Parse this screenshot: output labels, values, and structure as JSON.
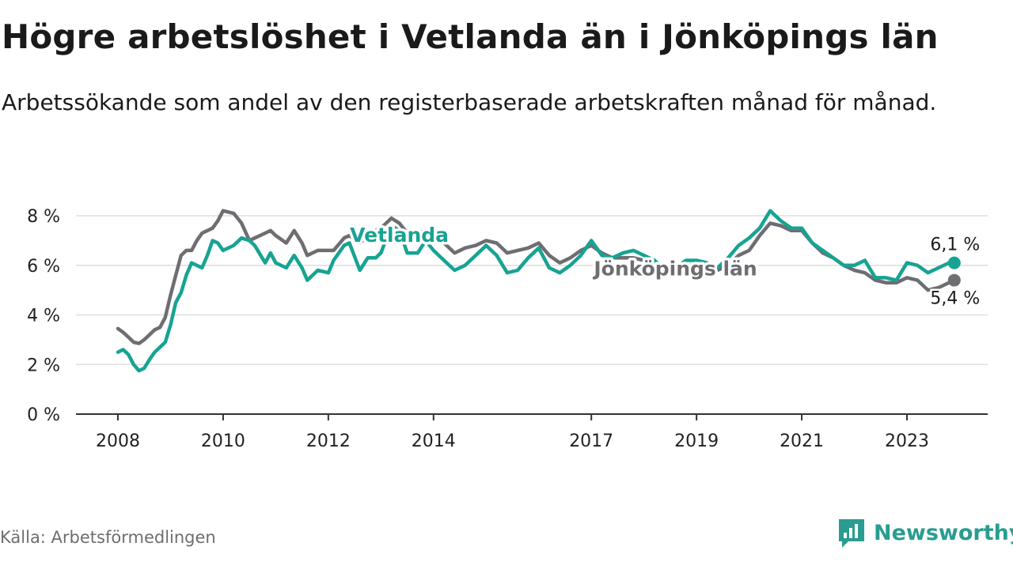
{
  "title": "Högre arbetslöshet i Vetlanda än i Jönköpings län",
  "subtitle": "Arbetssökande som andel av den registerbaserade arbetskraften månad för månad.",
  "source": "Källa: Arbetsförmedlingen",
  "brand": {
    "name": "Newsworthy",
    "icon": "newsworthy-logo-icon"
  },
  "colors": {
    "vetlanda": "#17a393",
    "lan": "#6e6d72",
    "grid": "#dddddd",
    "axis": "#333333"
  },
  "chart_data": {
    "type": "line",
    "title": "Högre arbetslöshet i Vetlanda än i Jönköpings län",
    "xlabel": "",
    "ylabel": "",
    "ylim": [
      0,
      8
    ],
    "xlim": [
      2007.6,
      2024.6
    ],
    "y_ticks": [
      {
        "value": 0,
        "label": "0 %"
      },
      {
        "value": 2,
        "label": "2 %"
      },
      {
        "value": 4,
        "label": "4 %"
      },
      {
        "value": 6,
        "label": "6 %"
      },
      {
        "value": 8,
        "label": "8 %"
      }
    ],
    "x_ticks": [
      {
        "value": 2008,
        "label": "2008"
      },
      {
        "value": 2010,
        "label": "2010"
      },
      {
        "value": 2012,
        "label": "2012"
      },
      {
        "value": 2014,
        "label": "2014"
      },
      {
        "value": 2017,
        "label": "2017"
      },
      {
        "value": 2019,
        "label": "2019"
      },
      {
        "value": 2021,
        "label": "2021"
      },
      {
        "value": 2023,
        "label": "2023"
      }
    ],
    "series": [
      {
        "name": "Vetlanda",
        "color": "#17a393",
        "end_label": "6,1 %",
        "x": [
          2008.0,
          2008.1,
          2008.2,
          2008.3,
          2008.4,
          2008.5,
          2008.6,
          2008.7,
          2008.8,
          2008.9,
          2009.0,
          2009.1,
          2009.2,
          2009.3,
          2009.4,
          2009.5,
          2009.6,
          2009.7,
          2009.8,
          2009.9,
          2010.0,
          2010.2,
          2010.35,
          2010.5,
          2010.6,
          2010.8,
          2010.9,
          2011.0,
          2011.2,
          2011.35,
          2011.5,
          2011.6,
          2011.8,
          2012.0,
          2012.1,
          2012.3,
          2012.4,
          2012.6,
          2012.75,
          2012.9,
          2013.0,
          2013.2,
          2013.35,
          2013.5,
          2013.7,
          2013.85,
          2014.0,
          2014.2,
          2014.4,
          2014.6,
          2014.8,
          2015.0,
          2015.2,
          2015.4,
          2015.6,
          2015.8,
          2016.0,
          2016.2,
          2016.4,
          2016.6,
          2016.8,
          2017.0,
          2017.2,
          2017.4,
          2017.6,
          2017.8,
          2018.0,
          2018.2,
          2018.4,
          2018.6,
          2018.8,
          2019.0,
          2019.2,
          2019.4,
          2019.6,
          2019.8,
          2020.0,
          2020.2,
          2020.4,
          2020.6,
          2020.8,
          2021.0,
          2021.2,
          2021.4,
          2021.6,
          2021.8,
          2022.0,
          2022.2,
          2022.4,
          2022.6,
          2022.8,
          2023.0,
          2023.2,
          2023.4,
          2023.6,
          2023.8,
          2023.9
        ],
        "y": [
          2.5,
          2.6,
          2.4,
          2.0,
          1.75,
          1.85,
          2.2,
          2.5,
          2.7,
          2.9,
          3.6,
          4.5,
          4.9,
          5.6,
          6.1,
          6.0,
          5.9,
          6.4,
          7.0,
          6.9,
          6.6,
          6.8,
          7.1,
          7.0,
          6.8,
          6.1,
          6.5,
          6.1,
          5.9,
          6.4,
          5.9,
          5.4,
          5.8,
          5.7,
          6.2,
          6.8,
          6.9,
          5.8,
          6.3,
          6.3,
          6.5,
          7.6,
          7.4,
          6.5,
          6.5,
          7.0,
          6.6,
          6.2,
          5.8,
          6.0,
          6.4,
          6.8,
          6.4,
          5.7,
          5.8,
          6.3,
          6.7,
          5.9,
          5.7,
          6.0,
          6.4,
          7.0,
          6.4,
          6.3,
          6.5,
          6.6,
          6.4,
          6.2,
          5.8,
          5.9,
          6.2,
          6.2,
          6.1,
          5.9,
          6.3,
          6.8,
          7.1,
          7.5,
          8.2,
          7.8,
          7.5,
          7.5,
          6.9,
          6.6,
          6.3,
          6.0,
          6.0,
          6.2,
          5.5,
          5.5,
          5.4,
          6.1,
          6.0,
          5.7,
          5.9,
          6.1,
          6.1
        ]
      },
      {
        "name": "Jönköpings län",
        "color": "#6e6d72",
        "end_label": "5,4 %",
        "x": [
          2008.0,
          2008.1,
          2008.2,
          2008.3,
          2008.4,
          2008.5,
          2008.6,
          2008.7,
          2008.8,
          2008.9,
          2009.0,
          2009.1,
          2009.2,
          2009.3,
          2009.4,
          2009.5,
          2009.6,
          2009.7,
          2009.8,
          2009.9,
          2010.0,
          2010.2,
          2010.35,
          2010.5,
          2010.6,
          2010.8,
          2010.9,
          2011.0,
          2011.2,
          2011.35,
          2011.5,
          2011.6,
          2011.8,
          2012.0,
          2012.1,
          2012.3,
          2012.4,
          2012.6,
          2012.75,
          2012.9,
          2013.0,
          2013.2,
          2013.35,
          2013.5,
          2013.7,
          2013.85,
          2014.0,
          2014.2,
          2014.4,
          2014.6,
          2014.8,
          2015.0,
          2015.2,
          2015.4,
          2015.6,
          2015.8,
          2016.0,
          2016.2,
          2016.4,
          2016.6,
          2016.8,
          2017.0,
          2017.2,
          2017.4,
          2017.6,
          2017.8,
          2018.0,
          2018.2,
          2018.4,
          2018.6,
          2018.8,
          2019.0,
          2019.2,
          2019.4,
          2019.6,
          2019.8,
          2020.0,
          2020.2,
          2020.4,
          2020.6,
          2020.8,
          2021.0,
          2021.2,
          2021.4,
          2021.6,
          2021.8,
          2022.0,
          2022.2,
          2022.4,
          2022.6,
          2022.8,
          2023.0,
          2023.2,
          2023.4,
          2023.6,
          2023.8,
          2023.9
        ],
        "y": [
          3.45,
          3.3,
          3.1,
          2.9,
          2.85,
          3.0,
          3.2,
          3.4,
          3.5,
          3.9,
          4.8,
          5.6,
          6.4,
          6.6,
          6.6,
          7.0,
          7.3,
          7.4,
          7.5,
          7.8,
          8.2,
          8.1,
          7.7,
          7.0,
          7.1,
          7.3,
          7.4,
          7.2,
          6.9,
          7.4,
          6.9,
          6.4,
          6.6,
          6.6,
          6.6,
          7.1,
          7.2,
          6.9,
          7.2,
          7.4,
          7.5,
          7.9,
          7.7,
          7.3,
          7.3,
          7.4,
          7.2,
          6.9,
          6.5,
          6.7,
          6.8,
          7.0,
          6.9,
          6.5,
          6.6,
          6.7,
          6.9,
          6.4,
          6.1,
          6.3,
          6.6,
          6.8,
          6.5,
          6.3,
          6.3,
          6.3,
          6.2,
          6.0,
          5.9,
          5.9,
          6.0,
          6.0,
          5.8,
          5.8,
          6.0,
          6.4,
          6.6,
          7.2,
          7.7,
          7.6,
          7.4,
          7.4,
          6.9,
          6.5,
          6.3,
          6.0,
          5.8,
          5.7,
          5.4,
          5.3,
          5.3,
          5.5,
          5.4,
          5.0,
          5.1,
          5.3,
          5.4
        ]
      }
    ],
    "annotations": [
      {
        "text": "Vetlanda",
        "series": "Vetlanda",
        "x": 2013.35,
        "y": 6.95
      },
      {
        "text": "Jönköpings län",
        "series": "Jönköpings län",
        "x": 2018.6,
        "y": 5.6
      }
    ]
  }
}
